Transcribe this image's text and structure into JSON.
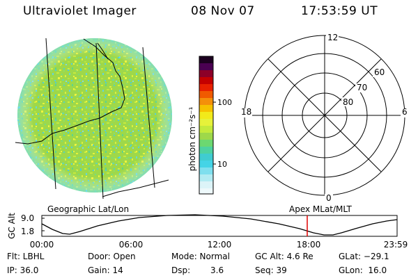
{
  "header": {
    "title": "Ultraviolet Imager",
    "date": "08 Nov 07",
    "time": "17:53:59 UT"
  },
  "left_panel": {
    "caption": "Geographic Lat/Lon"
  },
  "colorbar": {
    "label": "photon cm⁻²s⁻¹",
    "ticks": [
      "100",
      "10"
    ]
  },
  "polar_plot": {
    "caption": "Apex MLat/MLT",
    "mlt_labels": {
      "top": "12",
      "bottom": "0",
      "left": "18",
      "right": "6"
    },
    "lat_labels": [
      "60",
      "70",
      "80"
    ]
  },
  "orbit_plot": {
    "ylabel": "GC Alt",
    "yticks": [
      "9.0",
      "1.8"
    ],
    "xticks": [
      "00:00",
      "06:00",
      "12:00",
      "18:00",
      "23:59"
    ],
    "current_time": "17:53:59",
    "colors": {
      "marker": "#e00000",
      "curve": "#000000"
    }
  },
  "info": {
    "flt": "Flt: LBHL",
    "ip": "IP: 36.0",
    "door": "Door: Open",
    "gain": "Gain: 14",
    "mode": "Mode: Normal",
    "dsp_label": "Dsp:",
    "dsp_value": "3.6",
    "gc_alt": "GC Alt: 4.6 Re",
    "seq": "Seq: 39",
    "glat": "GLat: −29.1",
    "glon": "GLon:  16.0"
  }
}
